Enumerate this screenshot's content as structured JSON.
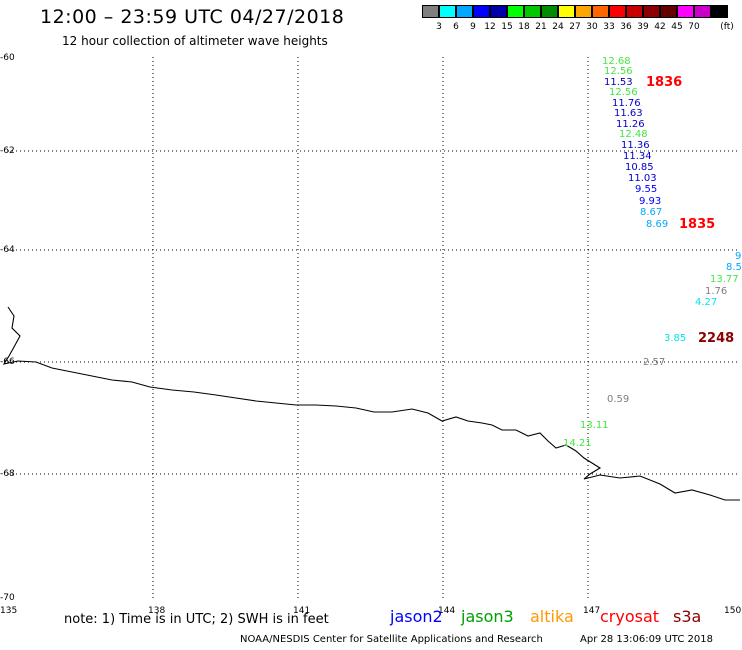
{
  "header": {
    "title": "12:00 – 23:59 UTC 04/27/2018",
    "subtitle": "12 hour collection of altimeter wave heights"
  },
  "scale": {
    "unit": "(ft)",
    "colors": [
      "#7f7f7f",
      "#00ffff",
      "#00a8ff",
      "#0000ff",
      "#0000a8",
      "#00ff00",
      "#00c800",
      "#008c00",
      "#ffff00",
      "#ffa500",
      "#ff6600",
      "#ff0000",
      "#c80000",
      "#8c0000",
      "#640000",
      "#ff00ff",
      "#c800c8",
      "#000000"
    ],
    "labels": [
      "3",
      "6",
      "9",
      "12",
      "15",
      "18",
      "21",
      "24",
      "27",
      "30",
      "33",
      "36",
      "39",
      "42",
      "45",
      "70"
    ]
  },
  "axes": {
    "lat_labels": [
      "-60",
      "-62",
      "-64",
      "-66",
      "-68",
      "-70"
    ],
    "lon_labels": [
      "135",
      "138",
      "141",
      "144",
      "147",
      "150"
    ]
  },
  "observations": [
    {
      "text": "12.68",
      "color": "#44e644"
    },
    {
      "text": "12.56",
      "color": "#44e644"
    },
    {
      "text": "11.53",
      "color": "#0000aa"
    },
    {
      "text": "12.56",
      "color": "#44e644"
    },
    {
      "text": "11.76",
      "color": "#0000cc"
    },
    {
      "text": "11.63",
      "color": "#0000cc"
    },
    {
      "text": "11.26",
      "color": "#0000cc"
    },
    {
      "text": "12.48",
      "color": "#44e644"
    },
    {
      "text": "11.36",
      "color": "#0000cc"
    },
    {
      "text": "11.34",
      "color": "#0000cc"
    },
    {
      "text": "10.85",
      "color": "#0000cc"
    },
    {
      "text": "11.03",
      "color": "#0000cc"
    },
    {
      "text": "9.55",
      "color": "#0000ff"
    },
    {
      "text": "9.93",
      "color": "#0000ff"
    },
    {
      "text": "8.67",
      "color": "#00a8ff"
    },
    {
      "text": "8.69",
      "color": "#00a8ff"
    },
    {
      "text": "9",
      "color": "#00a8ff"
    },
    {
      "text": "8.5",
      "color": "#00a8ff"
    },
    {
      "text": "13.77",
      "color": "#44e644"
    },
    {
      "text": "1.76",
      "color": "#7f7f7f"
    },
    {
      "text": "4.27",
      "color": "#00e6e6"
    },
    {
      "text": "3.85",
      "color": "#00e6e6"
    },
    {
      "text": "2.57",
      "color": "#7f7f7f"
    },
    {
      "text": "0.59",
      "color": "#7f7f7f"
    },
    {
      "text": "13.11",
      "color": "#44e644"
    },
    {
      "text": "14.21",
      "color": "#44e644"
    }
  ],
  "pass_times": [
    {
      "text": "1836",
      "color": "#ff0000"
    },
    {
      "text": "1835",
      "color": "#ff0000"
    },
    {
      "text": "2248",
      "color": "#8c0000"
    }
  ],
  "footer": {
    "note": "note: 1) Time is in UTC; 2) SWH is in feet",
    "satellites": [
      {
        "name": "jason2",
        "color": "#0000ff"
      },
      {
        "name": "jason3",
        "color": "#00a000"
      },
      {
        "name": "altika",
        "color": "#ff9900"
      },
      {
        "name": "cryosat",
        "color": "#ff0000"
      },
      {
        "name": "s3a",
        "color": "#8c0000"
      }
    ],
    "credit": "NOAA/NESDIS Center for Satellite Applications and Research",
    "timestamp": "Apr 28 13:06:09 UTC 2018"
  }
}
